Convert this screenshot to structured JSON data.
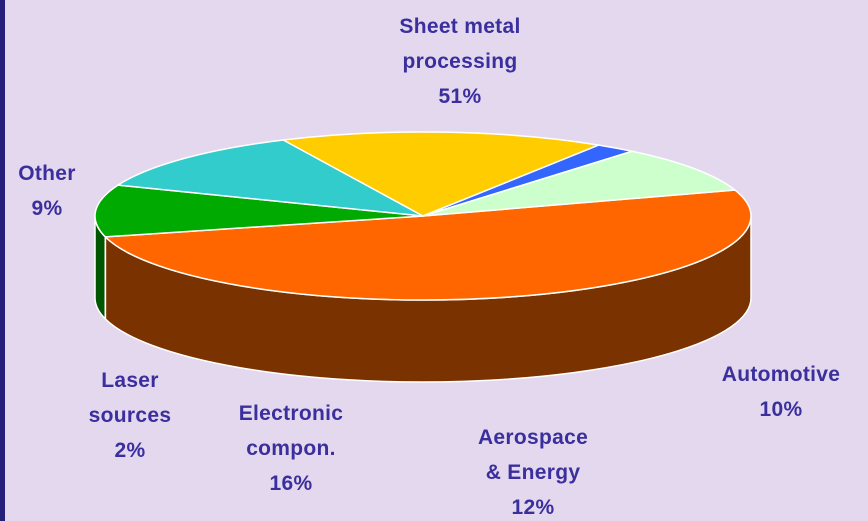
{
  "chart_data": {
    "type": "pie",
    "style": "3d",
    "slices": [
      {
        "label_lines": [
          "Sheet metal",
          "processing"
        ],
        "value": 51,
        "pct_label": "51%",
        "color": "#ff6600",
        "side_color": "#7a3300"
      },
      {
        "label_lines": [
          "Automotive"
        ],
        "value": 10,
        "pct_label": "10%",
        "color": "#00aa00",
        "side_color": "#005500"
      },
      {
        "label_lines": [
          "Aerospace",
          "& Energy"
        ],
        "value": 12,
        "pct_label": "12%",
        "color": "#33cccc",
        "side_color": "#1a6666"
      },
      {
        "label_lines": [
          "Electronic",
          "compon."
        ],
        "value": 16,
        "pct_label": "16%",
        "color": "#ffcc00",
        "side_color": "#806600"
      },
      {
        "label_lines": [
          "Laser",
          "sources"
        ],
        "value": 2,
        "pct_label": "2%",
        "color": "#3366ff",
        "side_color": "#1a3380"
      },
      {
        "label_lines": [
          "Other"
        ],
        "value": 9,
        "pct_label": "9%",
        "color": "#ccffcc",
        "side_color": "#668066"
      }
    ],
    "legend": "none",
    "colors": {
      "background": "#e4d8ee",
      "label_text": "#3a2f9c",
      "frame_border": "#24207a"
    }
  }
}
